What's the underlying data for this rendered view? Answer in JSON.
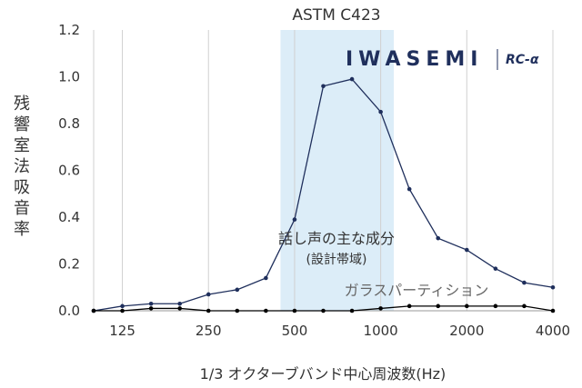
{
  "chart_data": {
    "type": "line",
    "title": "ASTM C423",
    "xlabel": "1/3 オクターブバンド中心周波数(Hz)",
    "ylabel": "残響室法吸音率",
    "x_positions_hz": [
      100,
      125,
      160,
      200,
      250,
      315,
      400,
      500,
      630,
      800,
      1000,
      1250,
      1600,
      2000,
      2500,
      3150,
      4000
    ],
    "x_tick_labels": [
      "125",
      "250",
      "500",
      "1000",
      "2000",
      "4000"
    ],
    "y_ticks": [
      "0.0",
      "0.2",
      "0.4",
      "0.6",
      "0.8",
      "1.0",
      "1.2"
    ],
    "ylim": [
      0,
      1.2
    ],
    "grid": "vertical",
    "series": [
      {
        "color": "#1f2f5c",
        "values": [
          0.0,
          0.02,
          0.03,
          0.03,
          0.07,
          0.09,
          0.14,
          0.39,
          0.96,
          0.99,
          0.85,
          0.52,
          0.31,
          0.26,
          0.18,
          0.12,
          0.1
        ]
      },
      {
        "color": "#000000",
        "values": [
          0.0,
          0.0,
          0.01,
          0.01,
          0.0,
          0.0,
          0.0,
          0.0,
          0.0,
          0.0,
          0.01,
          0.02,
          0.02,
          0.02,
          0.02,
          0.02,
          0.0
        ]
      }
    ],
    "highlight_band": {
      "from_hz": 450,
      "to_hz": 1120,
      "color": "#dcedf8",
      "label": "話し声の主な成分",
      "sublabel": "(設計帯域)"
    },
    "annotations": [
      {
        "text": "ガラスパーティション"
      }
    ],
    "logo": {
      "brand": "IWASEMI",
      "model": "RC-α"
    }
  }
}
